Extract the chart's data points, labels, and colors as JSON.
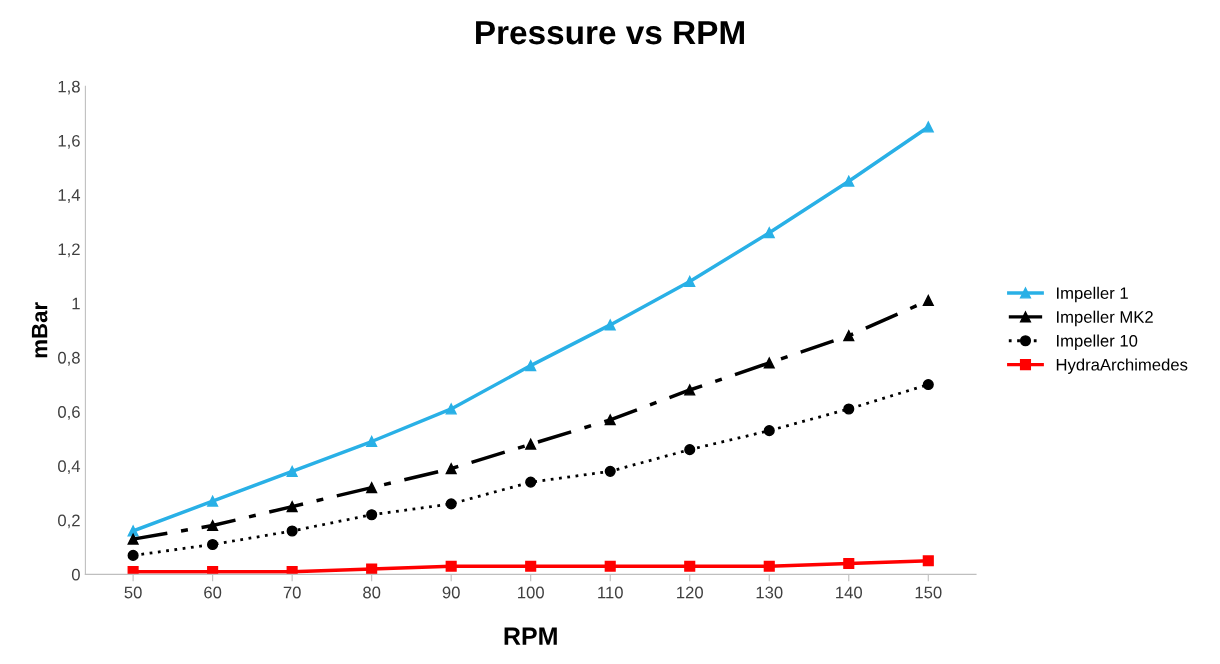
{
  "chart_data": {
    "type": "line",
    "title": "Pressure vs RPM",
    "xlabel": "RPM",
    "ylabel": "mBar",
    "categories": [
      "50",
      "60",
      "70",
      "80",
      "90",
      "100",
      "110",
      "120",
      "130",
      "140",
      "150"
    ],
    "series": [
      {
        "name": "Impeller 1",
        "color": "#29b0e6",
        "values": [
          0.16,
          0.27,
          0.38,
          0.49,
          0.61,
          0.77,
          0.92,
          1.08,
          1.26,
          1.45,
          1.65
        ],
        "marker": "triangle",
        "line_style": "solid"
      },
      {
        "name": "Impeller MK2",
        "color": "#000000",
        "values": [
          0.13,
          0.18,
          0.25,
          0.32,
          0.39,
          0.48,
          0.57,
          0.68,
          0.78,
          0.88,
          1.01
        ],
        "marker": "triangle",
        "line_style": "dashdot"
      },
      {
        "name": "Impeller 10",
        "color": "#000000",
        "values": [
          0.07,
          0.11,
          0.16,
          0.22,
          0.26,
          0.34,
          0.38,
          0.46,
          0.53,
          0.61,
          0.7
        ],
        "marker": "circle",
        "line_style": "dotted"
      },
      {
        "name": "HydraArchimedes",
        "color": "#ff0000",
        "values": [
          0.01,
          0.01,
          0.01,
          0.02,
          0.03,
          0.03,
          0.03,
          0.03,
          0.03,
          0.04,
          0.05
        ],
        "marker": "square",
        "line_style": "solid"
      }
    ],
    "ylim": [
      0,
      1.8
    ],
    "yticks": [
      0,
      {
        "value": 0.2,
        "label": "0,2"
      },
      {
        "value": 0.4,
        "label": "0,4"
      },
      {
        "value": 0.6,
        "label": "0,6"
      },
      {
        "value": 0.8,
        "label": "0,8"
      },
      1,
      {
        "value": 1.2,
        "label": "1,2"
      },
      {
        "value": 1.4,
        "label": "1,4"
      },
      {
        "value": 1.6,
        "label": "1,6"
      },
      {
        "value": 1.8,
        "label": "1,8"
      }
    ],
    "grid": false,
    "legend": "right"
  }
}
